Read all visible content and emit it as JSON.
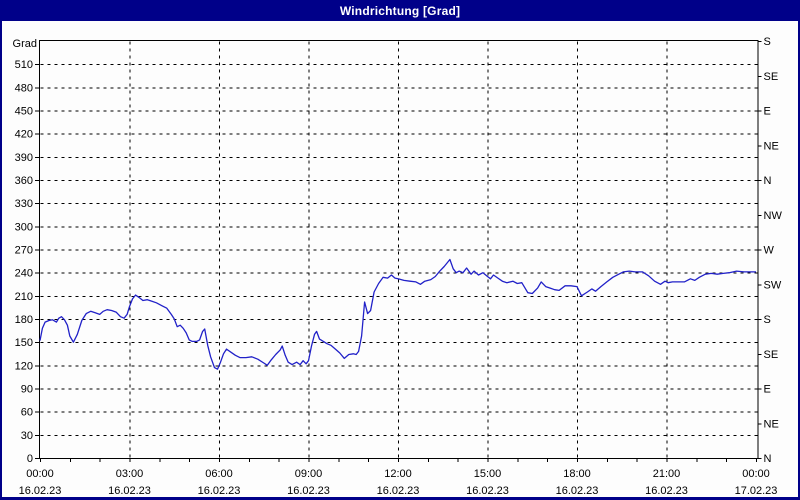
{
  "window": {
    "title": "Windrichtung [Grad]",
    "titlebar_color": "#000089",
    "panel_color": "#fdfdfd"
  },
  "chart_data": {
    "type": "line",
    "title": "Windrichtung [Grad]",
    "ylabel": "Grad",
    "grid": "dashed",
    "grid_color": "#000000",
    "y_axis": {
      "min": 0,
      "max": 540,
      "tick_step": 30,
      "tick_labels": [
        "0",
        "30",
        "60",
        "90",
        "120",
        "150",
        "180",
        "210",
        "240",
        "270",
        "300",
        "330",
        "360",
        "390",
        "420",
        "450",
        "480",
        "510"
      ]
    },
    "right_axis": {
      "tick_step": 45,
      "labels": [
        {
          "value": 0,
          "label": "N"
        },
        {
          "value": 45,
          "label": "NE"
        },
        {
          "value": 90,
          "label": "E"
        },
        {
          "value": 135,
          "label": "SE"
        },
        {
          "value": 180,
          "label": "S"
        },
        {
          "value": 225,
          "label": "SW"
        },
        {
          "value": 270,
          "label": "W"
        },
        {
          "value": 315,
          "label": "NW"
        },
        {
          "value": 360,
          "label": "N"
        },
        {
          "value": 405,
          "label": "NE"
        },
        {
          "value": 450,
          "label": "E"
        },
        {
          "value": 495,
          "label": "SE"
        },
        {
          "value": 540,
          "label": "S"
        }
      ]
    },
    "x_axis": {
      "min_hours": 0,
      "max_hours": 24,
      "minor_tick_hours": 1,
      "ticks": [
        {
          "hours": 0,
          "time": "00:00",
          "date": "16.02.23"
        },
        {
          "hours": 3,
          "time": "03:00",
          "date": "16.02.23"
        },
        {
          "hours": 6,
          "time": "06:00",
          "date": "16.02.23"
        },
        {
          "hours": 9,
          "time": "09:00",
          "date": "16.02.23"
        },
        {
          "hours": 12,
          "time": "12:00",
          "date": "16.02.23"
        },
        {
          "hours": 15,
          "time": "15:00",
          "date": "16.02.23"
        },
        {
          "hours": 18,
          "time": "18:00",
          "date": "16.02.23"
        },
        {
          "hours": 21,
          "time": "21:00",
          "date": "16.02.23"
        },
        {
          "hours": 24,
          "time": "00:00",
          "date": "17.02.23"
        }
      ]
    },
    "series": [
      {
        "name": "Windrichtung",
        "color": "#2121c8",
        "points": [
          [
            0,
            152
          ],
          [
            0.08,
            168
          ],
          [
            0.17,
            176
          ],
          [
            0.3,
            178
          ],
          [
            0.42,
            179
          ],
          [
            0.55,
            176
          ],
          [
            0.63,
            181
          ],
          [
            0.72,
            183
          ],
          [
            0.82,
            179
          ],
          [
            0.92,
            172
          ],
          [
            1.0,
            158
          ],
          [
            1.12,
            150
          ],
          [
            1.25,
            160
          ],
          [
            1.4,
            178
          ],
          [
            1.55,
            187
          ],
          [
            1.7,
            190
          ],
          [
            1.85,
            188
          ],
          [
            2.0,
            186
          ],
          [
            2.12,
            190
          ],
          [
            2.25,
            192
          ],
          [
            2.4,
            191
          ],
          [
            2.55,
            189
          ],
          [
            2.7,
            183
          ],
          [
            2.82,
            181
          ],
          [
            2.92,
            186
          ],
          [
            3.0,
            196
          ],
          [
            3.1,
            206
          ],
          [
            3.2,
            211
          ],
          [
            3.32,
            208
          ],
          [
            3.45,
            204
          ],
          [
            3.6,
            205
          ],
          [
            3.75,
            203
          ],
          [
            3.9,
            201
          ],
          [
            4.1,
            197
          ],
          [
            4.25,
            194
          ],
          [
            4.4,
            186
          ],
          [
            4.5,
            180
          ],
          [
            4.6,
            170
          ],
          [
            4.7,
            172
          ],
          [
            4.8,
            168
          ],
          [
            4.9,
            162
          ],
          [
            5.0,
            153
          ],
          [
            5.1,
            151
          ],
          [
            5.25,
            151
          ],
          [
            5.35,
            153
          ],
          [
            5.45,
            164
          ],
          [
            5.52,
            167
          ],
          [
            5.62,
            146
          ],
          [
            5.72,
            131
          ],
          [
            5.85,
            117
          ],
          [
            5.95,
            115
          ],
          [
            6.05,
            124
          ],
          [
            6.15,
            135
          ],
          [
            6.25,
            141
          ],
          [
            6.4,
            137
          ],
          [
            6.55,
            133
          ],
          [
            6.7,
            130
          ],
          [
            6.9,
            130
          ],
          [
            7.1,
            131
          ],
          [
            7.3,
            128
          ],
          [
            7.5,
            123
          ],
          [
            7.62,
            120
          ],
          [
            7.75,
            127
          ],
          [
            7.9,
            134
          ],
          [
            8.05,
            140
          ],
          [
            8.12,
            145
          ],
          [
            8.22,
            133
          ],
          [
            8.32,
            124
          ],
          [
            8.45,
            121
          ],
          [
            8.6,
            124
          ],
          [
            8.72,
            121
          ],
          [
            8.82,
            126
          ],
          [
            8.92,
            122
          ],
          [
            9.0,
            126
          ],
          [
            9.1,
            145
          ],
          [
            9.2,
            160
          ],
          [
            9.27,
            164
          ],
          [
            9.37,
            154
          ],
          [
            9.5,
            151
          ],
          [
            9.62,
            148
          ],
          [
            9.75,
            146
          ],
          [
            9.9,
            141
          ],
          [
            10.05,
            136
          ],
          [
            10.2,
            129
          ],
          [
            10.35,
            134
          ],
          [
            10.5,
            135
          ],
          [
            10.6,
            134
          ],
          [
            10.68,
            138
          ],
          [
            10.78,
            158
          ],
          [
            10.88,
            202
          ],
          [
            10.98,
            187
          ],
          [
            11.08,
            191
          ],
          [
            11.2,
            215
          ],
          [
            11.35,
            226
          ],
          [
            11.5,
            234
          ],
          [
            11.65,
            233
          ],
          [
            11.78,
            237
          ],
          [
            11.9,
            233
          ],
          [
            12.0,
            232
          ],
          [
            12.2,
            230
          ],
          [
            12.4,
            229
          ],
          [
            12.6,
            228
          ],
          [
            12.75,
            225
          ],
          [
            12.9,
            229
          ],
          [
            13.1,
            231
          ],
          [
            13.25,
            235
          ],
          [
            13.4,
            242
          ],
          [
            13.55,
            248
          ],
          [
            13.74,
            257
          ],
          [
            13.85,
            245
          ],
          [
            13.95,
            240
          ],
          [
            14.05,
            242
          ],
          [
            14.18,
            240
          ],
          [
            14.3,
            246
          ],
          [
            14.45,
            238
          ],
          [
            14.55,
            242
          ],
          [
            14.7,
            237
          ],
          [
            14.85,
            240
          ],
          [
            15.0,
            235
          ],
          [
            15.1,
            232
          ],
          [
            15.2,
            237
          ],
          [
            15.35,
            233
          ],
          [
            15.5,
            229
          ],
          [
            15.65,
            227
          ],
          [
            15.85,
            229
          ],
          [
            16.0,
            226
          ],
          [
            16.15,
            227
          ],
          [
            16.35,
            214
          ],
          [
            16.5,
            213
          ],
          [
            16.68,
            220
          ],
          [
            16.8,
            228
          ],
          [
            16.95,
            222
          ],
          [
            17.1,
            220
          ],
          [
            17.25,
            218
          ],
          [
            17.4,
            217
          ],
          [
            17.6,
            223
          ],
          [
            17.8,
            223
          ],
          [
            18.0,
            222
          ],
          [
            18.15,
            210
          ],
          [
            18.35,
            215
          ],
          [
            18.5,
            219
          ],
          [
            18.62,
            216
          ],
          [
            18.8,
            222
          ],
          [
            19.0,
            228
          ],
          [
            19.2,
            234
          ],
          [
            19.4,
            238
          ],
          [
            19.55,
            241
          ],
          [
            19.75,
            242
          ],
          [
            19.95,
            241
          ],
          [
            20.2,
            241
          ],
          [
            20.4,
            236
          ],
          [
            20.6,
            229
          ],
          [
            20.8,
            225
          ],
          [
            20.95,
            229
          ],
          [
            21.05,
            227
          ],
          [
            21.2,
            228
          ],
          [
            21.4,
            228
          ],
          [
            21.6,
            228
          ],
          [
            21.8,
            232
          ],
          [
            21.95,
            230
          ],
          [
            22.1,
            234
          ],
          [
            22.3,
            238
          ],
          [
            22.5,
            239
          ],
          [
            22.7,
            238
          ],
          [
            22.9,
            239
          ],
          [
            23.1,
            240
          ],
          [
            23.35,
            242
          ],
          [
            23.6,
            241
          ],
          [
            23.8,
            241
          ],
          [
            24.0,
            241
          ]
        ]
      }
    ]
  }
}
